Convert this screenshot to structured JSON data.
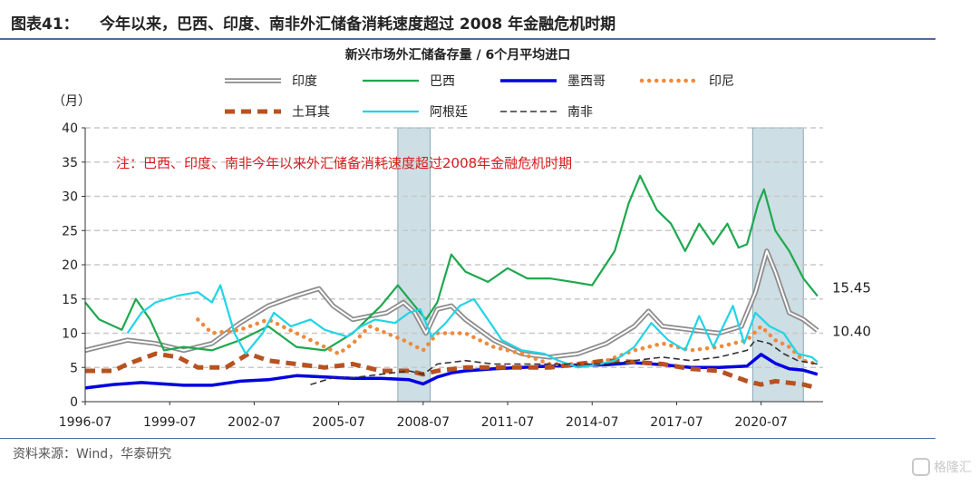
{
  "figure": {
    "number": "图表41：",
    "title": "今年以来，巴西、印度、南非外汇储备消耗速度超过 2008 年金融危机时期",
    "source": "资料来源：Wind，华泰研究",
    "watermark": "格隆汇"
  },
  "chart_data": {
    "type": "line",
    "title": "新兴市场外汇储备存量 / 6个月平均进口",
    "ylabel": "（月）",
    "ylim": [
      0,
      40
    ],
    "yticks": [
      0,
      5,
      10,
      15,
      20,
      25,
      30,
      35,
      40
    ],
    "xlim": [
      1996.5,
      2022.7
    ],
    "xticks": [
      {
        "label": "1996-07",
        "x": 1996.5
      },
      {
        "label": "1999-07",
        "x": 1999.5
      },
      {
        "label": "2002-07",
        "x": 2002.5
      },
      {
        "label": "2005-07",
        "x": 2005.5
      },
      {
        "label": "2008-07",
        "x": 2008.5
      },
      {
        "label": "2011-07",
        "x": 2011.5
      },
      {
        "label": "2014-07",
        "x": 2014.5
      },
      {
        "label": "2017-07",
        "x": 2017.5
      },
      {
        "label": "2020-07",
        "x": 2020.5
      }
    ],
    "grid": "horizontal-dashed",
    "legend_position": "top",
    "annotation": "注：巴西、印度、南非今年以来外汇储备消耗速度超过2008年金融危机时期",
    "shaded_periods": [
      [
        2007.6,
        2008.75
      ],
      [
        2020.2,
        2022.0
      ]
    ],
    "end_labels": [
      {
        "text": "15.45",
        "series": "巴西"
      },
      {
        "text": "10.40",
        "series": "印度"
      }
    ],
    "series": [
      {
        "name": "印度",
        "color": "#8c8c8c",
        "style": "double",
        "points": [
          [
            1996.5,
            7.5
          ],
          [
            1997,
            8
          ],
          [
            1998,
            9
          ],
          [
            1999,
            8.5
          ],
          [
            2000,
            7.5
          ],
          [
            2001,
            8.5
          ],
          [
            2002,
            11.5
          ],
          [
            2003,
            14
          ],
          [
            2004,
            15.5
          ],
          [
            2004.8,
            16.5
          ],
          [
            2005.3,
            14
          ],
          [
            2006,
            12
          ],
          [
            2006.6,
            12.5
          ],
          [
            2007.2,
            13
          ],
          [
            2007.8,
            14.5
          ],
          [
            2008.2,
            13
          ],
          [
            2008.6,
            10
          ],
          [
            2009,
            13.5
          ],
          [
            2009.5,
            14
          ],
          [
            2010,
            12
          ],
          [
            2011,
            9
          ],
          [
            2012,
            7
          ],
          [
            2013,
            6.5
          ],
          [
            2014,
            7
          ],
          [
            2015,
            8.5
          ],
          [
            2016,
            11
          ],
          [
            2016.5,
            13.2
          ],
          [
            2017,
            11
          ],
          [
            2018,
            10.5
          ],
          [
            2019,
            10
          ],
          [
            2019.8,
            11
          ],
          [
            2020.3,
            16
          ],
          [
            2020.7,
            22
          ],
          [
            2021,
            19
          ],
          [
            2021.5,
            13
          ],
          [
            2022,
            12
          ],
          [
            2022.5,
            10.4
          ]
        ]
      },
      {
        "name": "巴西",
        "color": "#1ea84e",
        "style": "solid",
        "points": [
          [
            1996.5,
            14.5
          ],
          [
            1997,
            12
          ],
          [
            1997.8,
            10.5
          ],
          [
            1998.3,
            15
          ],
          [
            1998.8,
            12
          ],
          [
            1999.3,
            7.5
          ],
          [
            2000,
            8
          ],
          [
            2001,
            7.5
          ],
          [
            2002,
            9
          ],
          [
            2003,
            11
          ],
          [
            2004,
            8
          ],
          [
            2005,
            7.5
          ],
          [
            2006,
            10
          ],
          [
            2007,
            14
          ],
          [
            2007.6,
            17
          ],
          [
            2008,
            15
          ],
          [
            2008.6,
            12
          ],
          [
            2009,
            14.5
          ],
          [
            2009.5,
            21.5
          ],
          [
            2010,
            19
          ],
          [
            2010.8,
            17.5
          ],
          [
            2011.5,
            19.5
          ],
          [
            2012.2,
            18
          ],
          [
            2013,
            18
          ],
          [
            2013.8,
            17.5
          ],
          [
            2014.5,
            17
          ],
          [
            2015.3,
            22
          ],
          [
            2015.8,
            29
          ],
          [
            2016.2,
            33
          ],
          [
            2016.8,
            28
          ],
          [
            2017.3,
            26
          ],
          [
            2017.8,
            22
          ],
          [
            2018.3,
            26
          ],
          [
            2018.8,
            23
          ],
          [
            2019.3,
            26
          ],
          [
            2019.7,
            22.5
          ],
          [
            2020,
            23
          ],
          [
            2020.4,
            29
          ],
          [
            2020.6,
            31
          ],
          [
            2021,
            25
          ],
          [
            2021.5,
            22
          ],
          [
            2022,
            18
          ],
          [
            2022.5,
            15.45
          ]
        ]
      },
      {
        "name": "墨西哥",
        "color": "#0000e0",
        "style": "thick",
        "points": [
          [
            1996.5,
            2
          ],
          [
            1997.5,
            2.5
          ],
          [
            1998.5,
            2.8
          ],
          [
            2000,
            2.4
          ],
          [
            2001,
            2.4
          ],
          [
            2002,
            3
          ],
          [
            2003,
            3.2
          ],
          [
            2004,
            3.8
          ],
          [
            2005,
            3.6
          ],
          [
            2006,
            3.4
          ],
          [
            2007,
            3.4
          ],
          [
            2008,
            3.2
          ],
          [
            2008.5,
            2.6
          ],
          [
            2009,
            3.6
          ],
          [
            2009.5,
            4.2
          ],
          [
            2010,
            4.5
          ],
          [
            2011,
            4.8
          ],
          [
            2012,
            5
          ],
          [
            2013,
            5.2
          ],
          [
            2014,
            5.3
          ],
          [
            2015,
            5.4
          ],
          [
            2016,
            5.7
          ],
          [
            2017,
            5.4
          ],
          [
            2018,
            5
          ],
          [
            2019,
            5
          ],
          [
            2020,
            5.2
          ],
          [
            2020.5,
            6.9
          ],
          [
            2021,
            5.6
          ],
          [
            2021.5,
            4.8
          ],
          [
            2022,
            4.6
          ],
          [
            2022.5,
            4.0
          ]
        ]
      },
      {
        "name": "印尼",
        "color": "#ef8a3d",
        "style": "dotted",
        "points": [
          [
            2000.5,
            12
          ],
          [
            2001,
            10
          ],
          [
            2002,
            10.5
          ],
          [
            2003,
            12
          ],
          [
            2003.5,
            11
          ],
          [
            2004,
            10
          ],
          [
            2005,
            8
          ],
          [
            2005.5,
            7
          ],
          [
            2006,
            8.5
          ],
          [
            2006.6,
            11
          ],
          [
            2007.2,
            10
          ],
          [
            2007.8,
            9
          ],
          [
            2008.5,
            7.5
          ],
          [
            2009,
            10
          ],
          [
            2010,
            10
          ],
          [
            2011,
            8
          ],
          [
            2012,
            7
          ],
          [
            2013,
            5.5
          ],
          [
            2014,
            5.5
          ],
          [
            2015,
            6
          ],
          [
            2016,
            7.5
          ],
          [
            2017,
            8.5
          ],
          [
            2018,
            7.5
          ],
          [
            2019,
            8
          ],
          [
            2020,
            9
          ],
          [
            2020.5,
            11
          ],
          [
            2021,
            9
          ],
          [
            2021.5,
            8
          ],
          [
            2022,
            6
          ],
          [
            2022.5,
            5.5
          ]
        ]
      },
      {
        "name": "土耳其",
        "color": "#b8521f",
        "style": "thickdash",
        "points": [
          [
            1996.5,
            4.5
          ],
          [
            1997.5,
            4.5
          ],
          [
            1998,
            5.5
          ],
          [
            1999,
            7
          ],
          [
            1999.8,
            6.5
          ],
          [
            2000.5,
            5
          ],
          [
            2001.5,
            5
          ],
          [
            2002.3,
            7
          ],
          [
            2003,
            6
          ],
          [
            2004,
            5.5
          ],
          [
            2005,
            5
          ],
          [
            2006,
            5.5
          ],
          [
            2007,
            4.5
          ],
          [
            2008,
            4.5
          ],
          [
            2008.5,
            4
          ],
          [
            2009,
            4.5
          ],
          [
            2010,
            5
          ],
          [
            2011,
            5
          ],
          [
            2012,
            5
          ],
          [
            2013,
            5
          ],
          [
            2014,
            5.5
          ],
          [
            2015,
            6
          ],
          [
            2016,
            5.8
          ],
          [
            2017,
            5.5
          ],
          [
            2018,
            4.8
          ],
          [
            2019,
            4.5
          ],
          [
            2020,
            3
          ],
          [
            2020.5,
            2.5
          ],
          [
            2021,
            3
          ],
          [
            2022,
            2.5
          ],
          [
            2022.5,
            2.0
          ]
        ]
      },
      {
        "name": "阿根廷",
        "color": "#22d4e6",
        "style": "solid",
        "points": [
          [
            1998,
            10
          ],
          [
            1998.5,
            13
          ],
          [
            1999,
            14.5
          ],
          [
            1999.8,
            15.5
          ],
          [
            2000.5,
            16
          ],
          [
            2001,
            14.5
          ],
          [
            2001.3,
            17
          ],
          [
            2001.8,
            10
          ],
          [
            2002.2,
            7
          ],
          [
            2002.8,
            10
          ],
          [
            2003.2,
            13
          ],
          [
            2003.8,
            11
          ],
          [
            2004.5,
            12
          ],
          [
            2005,
            10.5
          ],
          [
            2005.8,
            9.5
          ],
          [
            2006.3,
            11
          ],
          [
            2006.8,
            12
          ],
          [
            2007.5,
            11.5
          ],
          [
            2008,
            13
          ],
          [
            2008.4,
            13.5
          ],
          [
            2008.8,
            9.5
          ],
          [
            2009.3,
            11.5
          ],
          [
            2009.8,
            14
          ],
          [
            2010.3,
            15
          ],
          [
            2010.8,
            12
          ],
          [
            2011.3,
            9
          ],
          [
            2012,
            7.5
          ],
          [
            2012.8,
            7
          ],
          [
            2013.3,
            6
          ],
          [
            2014,
            5
          ],
          [
            2014.8,
            5.5
          ],
          [
            2015.3,
            6
          ],
          [
            2016,
            8
          ],
          [
            2016.6,
            11.5
          ],
          [
            2017.2,
            9
          ],
          [
            2017.8,
            7.5
          ],
          [
            2018.3,
            12.5
          ],
          [
            2018.8,
            8
          ],
          [
            2019.5,
            14
          ],
          [
            2019.9,
            8.5
          ],
          [
            2020.3,
            13
          ],
          [
            2020.8,
            11
          ],
          [
            2021.3,
            10
          ],
          [
            2021.8,
            7
          ],
          [
            2022.3,
            6.5
          ],
          [
            2022.5,
            5.8
          ]
        ]
      },
      {
        "name": "南非",
        "color": "#333333",
        "style": "dashed",
        "points": [
          [
            2004.5,
            2.5
          ],
          [
            2005.3,
            3.5
          ],
          [
            2006,
            3.5
          ],
          [
            2007,
            4
          ],
          [
            2008,
            4.5
          ],
          [
            2008.5,
            4
          ],
          [
            2009,
            5.5
          ],
          [
            2010,
            6
          ],
          [
            2011,
            5.5
          ],
          [
            2012,
            5.5
          ],
          [
            2013,
            5.5
          ],
          [
            2014,
            5.5
          ],
          [
            2015,
            5.5
          ],
          [
            2016,
            6
          ],
          [
            2017,
            6.5
          ],
          [
            2018,
            6
          ],
          [
            2019,
            6.5
          ],
          [
            2020,
            7.5
          ],
          [
            2020.3,
            9
          ],
          [
            2020.8,
            8.5
          ],
          [
            2021.3,
            7
          ],
          [
            2021.8,
            6
          ],
          [
            2022.5,
            5.5
          ]
        ]
      }
    ]
  }
}
